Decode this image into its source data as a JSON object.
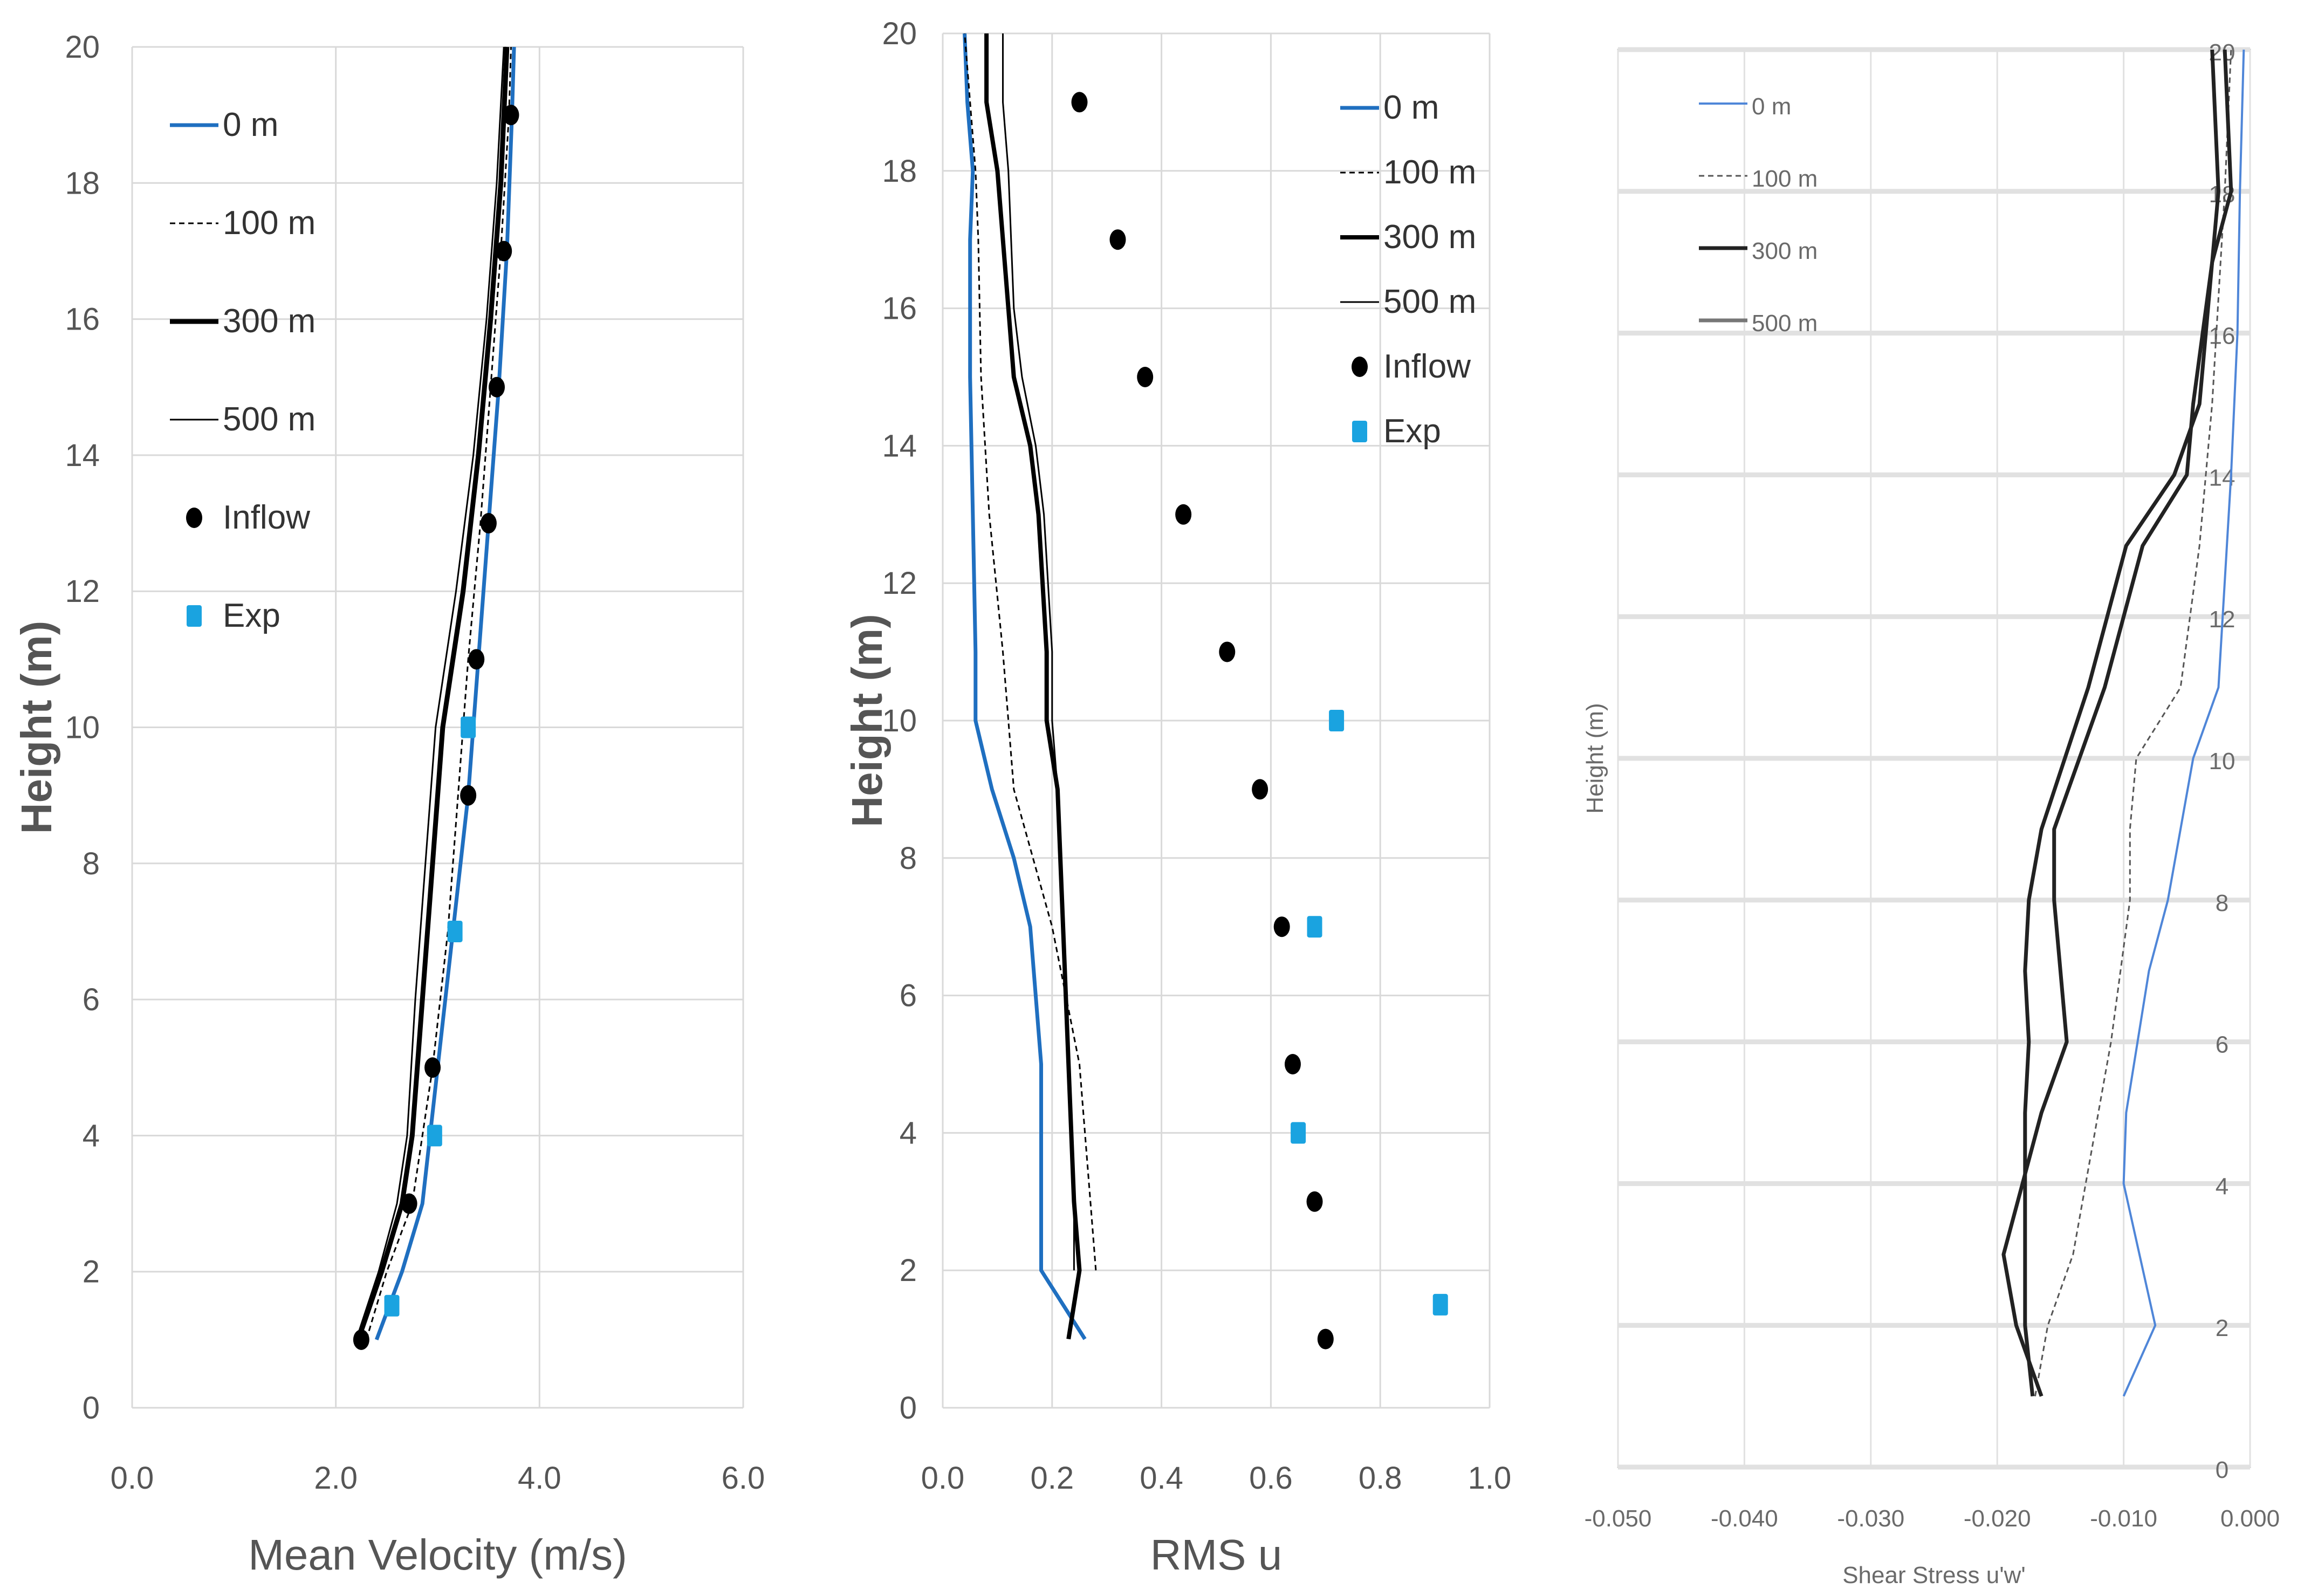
{
  "chart_data": [
    {
      "type": "line",
      "xlabel": "Mean Velocity (m/s)",
      "ylabel": "Height (m)",
      "xlim": [
        0,
        6
      ],
      "ylim": [
        0,
        20
      ],
      "xticks": [
        "0.0",
        "2.0",
        "4.0",
        "6.0"
      ],
      "yticks": [
        "0",
        "2",
        "4",
        "6",
        "8",
        "10",
        "12",
        "14",
        "16",
        "18",
        "20"
      ],
      "grid": true,
      "legend": "top-left",
      "series": [
        {
          "name": "0 m",
          "color": "#1f6fc0",
          "style": "solid",
          "points": [
            [
              2.4,
              1
            ],
            [
              2.65,
              2
            ],
            [
              2.85,
              3
            ],
            [
              3.0,
              5
            ],
            [
              3.15,
              7
            ],
            [
              3.3,
              9
            ],
            [
              3.4,
              11
            ],
            [
              3.5,
              13
            ],
            [
              3.6,
              15
            ],
            [
              3.68,
              17
            ],
            [
              3.73,
              19
            ],
            [
              3.75,
              20
            ]
          ]
        },
        {
          "name": "100 m",
          "color": "#000000",
          "style": "dashed",
          "points": [
            [
              2.3,
              1
            ],
            [
              2.5,
              2
            ],
            [
              2.75,
              3
            ],
            [
              2.95,
              5
            ],
            [
              3.1,
              7
            ],
            [
              3.2,
              9
            ],
            [
              3.3,
              11
            ],
            [
              3.42,
              13
            ],
            [
              3.52,
              15
            ],
            [
              3.62,
              17
            ],
            [
              3.7,
              19
            ],
            [
              3.72,
              20
            ]
          ]
        },
        {
          "name": "300 m",
          "color": "#000000",
          "style": "thick",
          "points": [
            [
              2.22,
              1
            ],
            [
              2.45,
              2
            ],
            [
              2.65,
              3
            ],
            [
              2.75,
              4
            ],
            [
              2.85,
              6
            ],
            [
              2.95,
              8
            ],
            [
              3.05,
              10
            ],
            [
              3.25,
              12
            ],
            [
              3.4,
              14
            ],
            [
              3.52,
              16
            ],
            [
              3.62,
              18
            ],
            [
              3.68,
              20
            ]
          ]
        },
        {
          "name": "500 m",
          "color": "#000000",
          "style": "thin",
          "points": [
            [
              2.2,
              1
            ],
            [
              2.42,
              2
            ],
            [
              2.6,
              3
            ],
            [
              2.7,
              4
            ],
            [
              2.78,
              6
            ],
            [
              2.88,
              8
            ],
            [
              2.98,
              10
            ],
            [
              3.18,
              12
            ],
            [
              3.35,
              14
            ],
            [
              3.48,
              16
            ],
            [
              3.58,
              18
            ],
            [
              3.65,
              20
            ]
          ]
        },
        {
          "name": "Inflow",
          "color": "#000000",
          "style": "markers-circle",
          "points": [
            [
              2.25,
              1
            ],
            [
              2.72,
              3
            ],
            [
              2.95,
              5
            ],
            [
              3.3,
              9
            ],
            [
              3.38,
              11
            ],
            [
              3.5,
              13
            ],
            [
              3.58,
              15
            ],
            [
              3.65,
              17
            ],
            [
              3.72,
              19
            ]
          ]
        },
        {
          "name": "Exp",
          "color": "#1aa3e0",
          "style": "markers-square",
          "points": [
            [
              2.55,
              1.5
            ],
            [
              2.97,
              4
            ],
            [
              3.17,
              7
            ],
            [
              3.3,
              10
            ]
          ]
        }
      ]
    },
    {
      "type": "line",
      "xlabel": "RMS u",
      "ylabel": "Height (m)",
      "xlim": [
        0,
        1
      ],
      "ylim": [
        0,
        20
      ],
      "xticks": [
        "0.0",
        "0.2",
        "0.4",
        "0.6",
        "0.8",
        "1.0"
      ],
      "yticks": [
        "0",
        "2",
        "4",
        "6",
        "8",
        "10",
        "12",
        "14",
        "16",
        "18",
        "20"
      ],
      "grid": true,
      "legend": "top-right",
      "series": [
        {
          "name": "0 m",
          "color": "#1f6fc0",
          "style": "solid",
          "points": [
            [
              0.26,
              1
            ],
            [
              0.18,
              2
            ],
            [
              0.18,
              5
            ],
            [
              0.16,
              7
            ],
            [
              0.13,
              8
            ],
            [
              0.09,
              9
            ],
            [
              0.06,
              10
            ],
            [
              0.06,
              11
            ],
            [
              0.055,
              13
            ],
            [
              0.05,
              15
            ],
            [
              0.05,
              17
            ],
            [
              0.055,
              18
            ],
            [
              0.045,
              19
            ],
            [
              0.04,
              20
            ]
          ]
        },
        {
          "name": "100 m",
          "color": "#000000",
          "style": "dashed",
          "points": [
            [
              0.28,
              2
            ],
            [
              0.27,
              3
            ],
            [
              0.25,
              5
            ],
            [
              0.2,
              7
            ],
            [
              0.13,
              9
            ],
            [
              0.12,
              10
            ],
            [
              0.11,
              11
            ],
            [
              0.085,
              13
            ],
            [
              0.07,
              15
            ],
            [
              0.065,
              17
            ],
            [
              0.06,
              18
            ],
            [
              0.05,
              19
            ],
            [
              0.04,
              20
            ]
          ]
        },
        {
          "name": "300 m",
          "color": "#000000",
          "style": "thick",
          "points": [
            [
              0.23,
              1
            ],
            [
              0.25,
              2
            ],
            [
              0.24,
              3
            ],
            [
              0.23,
              5
            ],
            [
              0.22,
              7
            ],
            [
              0.21,
              9
            ],
            [
              0.19,
              10
            ],
            [
              0.19,
              11
            ],
            [
              0.175,
              13
            ],
            [
              0.16,
              14
            ],
            [
              0.13,
              15
            ],
            [
              0.12,
              16
            ],
            [
              0.1,
              18
            ],
            [
              0.08,
              19
            ],
            [
              0.08,
              20
            ]
          ]
        },
        {
          "name": "500 m",
          "color": "#000000",
          "style": "thin",
          "points": [
            [
              0.24,
              2
            ],
            [
              0.24,
              3
            ],
            [
              0.23,
              5
            ],
            [
              0.22,
              7
            ],
            [
              0.21,
              9
            ],
            [
              0.2,
              10
            ],
            [
              0.2,
              11
            ],
            [
              0.185,
              13
            ],
            [
              0.17,
              14
            ],
            [
              0.145,
              15
            ],
            [
              0.13,
              16
            ],
            [
              0.12,
              18
            ],
            [
              0.11,
              19
            ],
            [
              0.11,
              20
            ]
          ]
        },
        {
          "name": "Inflow",
          "color": "#000000",
          "style": "markers-circle",
          "points": [
            [
              0.7,
              1
            ],
            [
              0.68,
              3
            ],
            [
              0.64,
              5
            ],
            [
              0.62,
              7
            ],
            [
              0.58,
              9
            ],
            [
              0.52,
              11
            ],
            [
              0.44,
              13
            ],
            [
              0.37,
              15
            ],
            [
              0.32,
              17
            ],
            [
              0.25,
              19
            ]
          ]
        },
        {
          "name": "Exp",
          "color": "#1aa3e0",
          "style": "markers-square",
          "points": [
            [
              0.91,
              1.5
            ],
            [
              0.65,
              4
            ],
            [
              0.68,
              7
            ],
            [
              0.72,
              10
            ]
          ]
        }
      ]
    },
    {
      "type": "line",
      "xlabel": "Shear Stress u'w'",
      "ylabel": "Height (m)",
      "xlim": [
        -0.05,
        0
      ],
      "ylim": [
        0,
        20
      ],
      "xticks": [
        "-0.050",
        "-0.040",
        "-0.030",
        "-0.020",
        "-0.010",
        "0.000"
      ],
      "yticks": [
        "0",
        "2",
        "4",
        "6",
        "8",
        "10",
        "12",
        "14",
        "16",
        "18",
        "20"
      ],
      "grid": true,
      "legend": "top-left",
      "series": [
        {
          "name": "0 m",
          "color": "#4f86d8",
          "style": "solid",
          "points": [
            [
              -0.01,
              1
            ],
            [
              -0.0075,
              2
            ],
            [
              -0.01,
              4
            ],
            [
              -0.0098,
              5
            ],
            [
              -0.008,
              7
            ],
            [
              -0.0065,
              8
            ],
            [
              -0.0045,
              10
            ],
            [
              -0.0025,
              11
            ],
            [
              -0.0015,
              14
            ],
            [
              -0.001,
              16
            ],
            [
              -0.0008,
              18
            ],
            [
              -0.0005,
              20
            ]
          ]
        },
        {
          "name": "100 m",
          "color": "#555555",
          "style": "dashed",
          "points": [
            [
              -0.017,
              1
            ],
            [
              -0.016,
              2
            ],
            [
              -0.014,
              3
            ],
            [
              -0.012,
              5
            ],
            [
              -0.011,
              6
            ],
            [
              -0.0095,
              8
            ],
            [
              -0.0095,
              9
            ],
            [
              -0.009,
              10
            ],
            [
              -0.0055,
              11
            ],
            [
              -0.004,
              13
            ],
            [
              -0.003,
              15
            ],
            [
              -0.002,
              18
            ],
            [
              -0.0015,
              20
            ]
          ]
        },
        {
          "name": "300 m",
          "color": "#222222",
          "style": "thick",
          "points": [
            [
              -0.0172,
              1
            ],
            [
              -0.0178,
              2
            ],
            [
              -0.0178,
              4
            ],
            [
              -0.0178,
              5
            ],
            [
              -0.0175,
              6
            ],
            [
              -0.0178,
              7
            ],
            [
              -0.0175,
              8
            ],
            [
              -0.0165,
              9
            ],
            [
              -0.0128,
              11
            ],
            [
              -0.0098,
              13
            ],
            [
              -0.006,
              14
            ],
            [
              -0.004,
              15
            ],
            [
              -0.003,
              17
            ],
            [
              -0.0025,
              18
            ],
            [
              -0.003,
              20
            ]
          ]
        },
        {
          "name": "500 m",
          "color": "#222222",
          "style": "thick",
          "points": [
            [
              -0.0165,
              1
            ],
            [
              -0.0185,
              2
            ],
            [
              -0.0195,
              3
            ],
            [
              -0.018,
              4
            ],
            [
              -0.0165,
              5
            ],
            [
              -0.0145,
              6
            ],
            [
              -0.015,
              7
            ],
            [
              -0.0155,
              8
            ],
            [
              -0.0155,
              9
            ],
            [
              -0.0115,
              11
            ],
            [
              -0.0085,
              13
            ],
            [
              -0.005,
              14
            ],
            [
              -0.0045,
              15
            ],
            [
              -0.003,
              17
            ],
            [
              -0.0015,
              18
            ],
            [
              -0.002,
              20
            ]
          ]
        }
      ]
    }
  ]
}
